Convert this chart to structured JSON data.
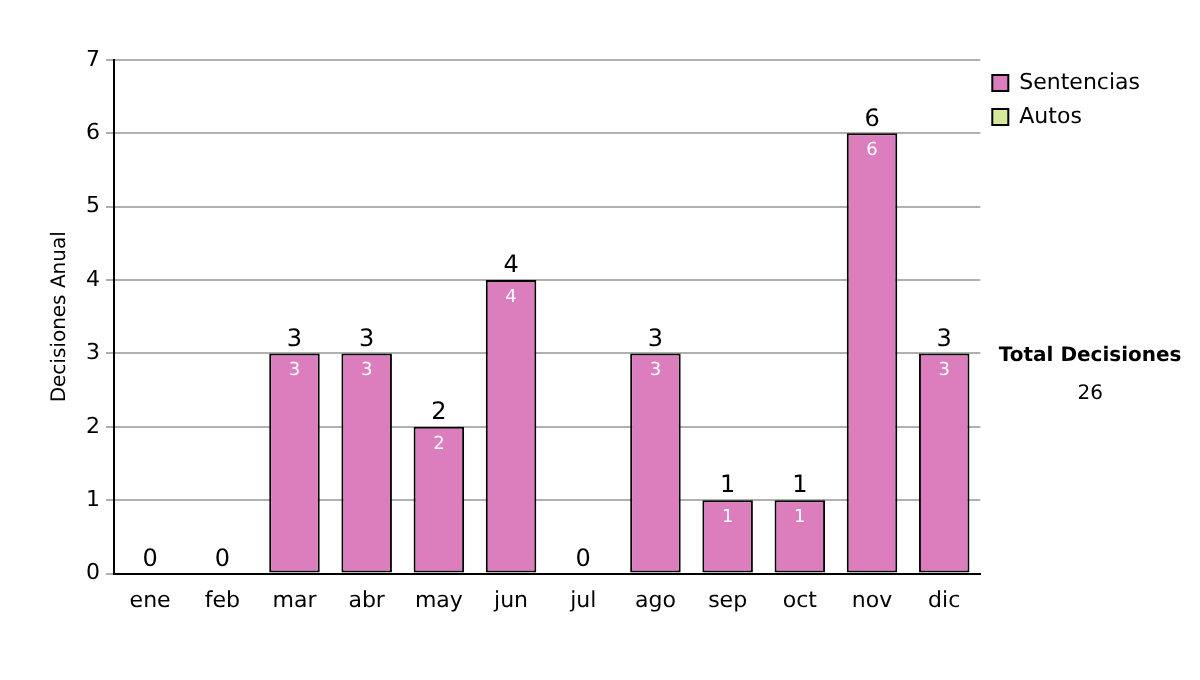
{
  "chart_data": {
    "type": "bar",
    "ylabel": "Decisiones Anual",
    "categories": [
      "ene",
      "feb",
      "mar",
      "abr",
      "may",
      "jun",
      "jul",
      "ago",
      "sep",
      "oct",
      "nov",
      "dic"
    ],
    "series": [
      {
        "name": "Sentencias",
        "color": "#dc7dbd",
        "values": [
          0,
          0,
          3,
          3,
          2,
          4,
          0,
          3,
          1,
          1,
          6,
          3
        ],
        "value_labels": [
          null,
          null,
          "3",
          "3",
          "2",
          "4",
          null,
          "3",
          "1",
          "1",
          "6",
          "3"
        ]
      },
      {
        "name": "Autos",
        "color": "#d6e89a",
        "values": [
          0,
          0,
          0,
          0,
          0,
          0,
          0,
          0,
          0,
          0,
          0,
          0
        ]
      }
    ],
    "stacked": true,
    "totals": [
      "0",
      "0",
      "3",
      "3",
      "2",
      "4",
      "0",
      "3",
      "1",
      "1",
      "6",
      "3"
    ],
    "ylim": [
      0,
      7
    ],
    "yticks": [
      0,
      1,
      2,
      3,
      4,
      5,
      6,
      7
    ],
    "grid": "y",
    "legend": "right",
    "annotations": [
      "Total Decisiones",
      "26"
    ]
  }
}
